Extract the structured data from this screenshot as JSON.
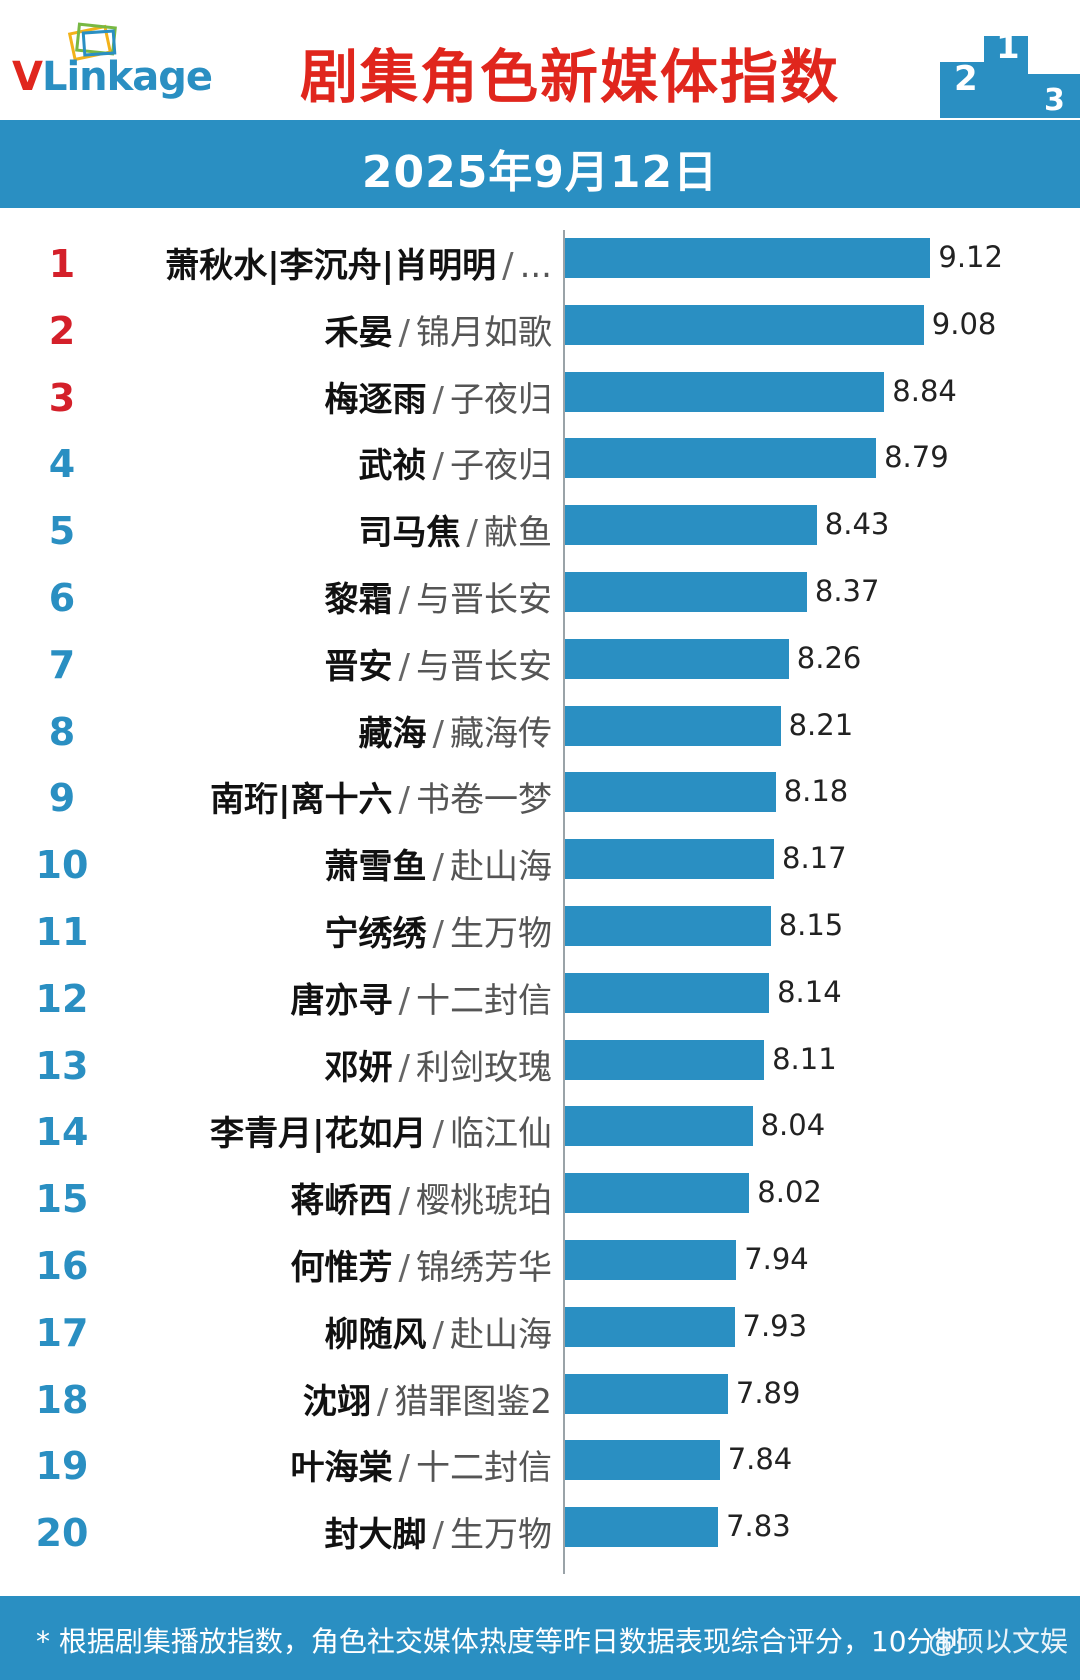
{
  "header": {
    "logo_text": "VLinkage",
    "title": "剧集角色新媒体指数",
    "date": "2025年9月12日"
  },
  "colors": {
    "accent": "#2a8fc2",
    "brand_red": "#e0261d",
    "top_rank": "#d4202a"
  },
  "chart_data": {
    "type": "bar",
    "orientation": "horizontal",
    "title": "剧集角色新媒体指数",
    "xlim": [
      6.9,
      9.3
    ],
    "grid": false,
    "rows": [
      {
        "rank": "1",
        "name": "萧秋水|李沉舟|肖明明",
        "show": "...",
        "value": 9.12
      },
      {
        "rank": "2",
        "name": "禾晏",
        "show": "锦月如歌",
        "value": 9.08
      },
      {
        "rank": "3",
        "name": "梅逐雨",
        "show": "子夜归",
        "value": 8.84
      },
      {
        "rank": "4",
        "name": "武祯",
        "show": "子夜归",
        "value": 8.79
      },
      {
        "rank": "5",
        "name": "司马焦",
        "show": "献鱼",
        "value": 8.43
      },
      {
        "rank": "6",
        "name": "黎霜",
        "show": "与晋长安",
        "value": 8.37
      },
      {
        "rank": "7",
        "name": "晋安",
        "show": "与晋长安",
        "value": 8.26
      },
      {
        "rank": "8",
        "name": "藏海",
        "show": "藏海传",
        "value": 8.21
      },
      {
        "rank": "9",
        "name": "南珩|离十六",
        "show": "书卷一梦",
        "value": 8.18
      },
      {
        "rank": "10",
        "name": "萧雪鱼",
        "show": "赴山海",
        "value": 8.17
      },
      {
        "rank": "11",
        "name": "宁绣绣",
        "show": "生万物",
        "value": 8.15
      },
      {
        "rank": "12",
        "name": "唐亦寻",
        "show": "十二封信",
        "value": 8.14
      },
      {
        "rank": "13",
        "name": "邓妍",
        "show": "利剑玫瑰",
        "value": 8.11
      },
      {
        "rank": "14",
        "name": "李青月|花如月",
        "show": "临江仙",
        "value": 8.04
      },
      {
        "rank": "15",
        "name": "蒋峤西",
        "show": "樱桃琥珀",
        "value": 8.02
      },
      {
        "rank": "16",
        "name": "何惟芳",
        "show": "锦绣芳华",
        "value": 7.94
      },
      {
        "rank": "17",
        "name": "柳随风",
        "show": "赴山海",
        "value": 7.93
      },
      {
        "rank": "18",
        "name": "沈翊",
        "show": "猎罪图鉴2",
        "value": 7.89
      },
      {
        "rank": "19",
        "name": "叶海棠",
        "show": "十二封信",
        "value": 7.84
      },
      {
        "rank": "20",
        "name": "封大脚",
        "show": "生万物",
        "value": 7.83
      }
    ]
  },
  "footer": {
    "note": "* 根据剧集播放指数，角色社交媒体热度等昨日数据表现综合评分，10分制",
    "watermark": "@硕以文娱"
  }
}
